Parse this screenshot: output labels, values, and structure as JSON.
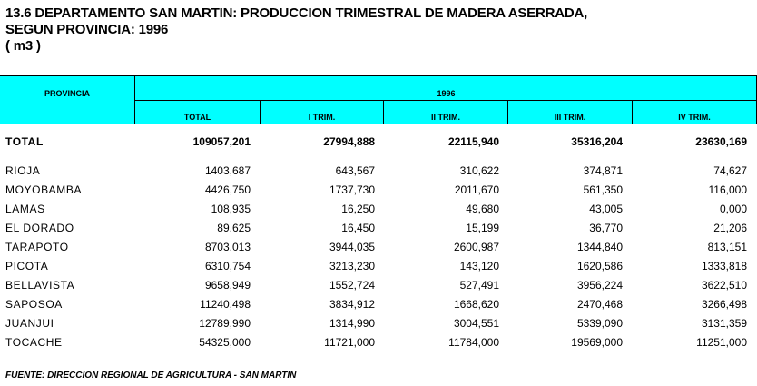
{
  "title": {
    "line1": "13.6 DEPARTAMENTO SAN MARTIN: PRODUCCION TRIMESTRAL DE MADERA ASERRADA,",
    "line2": "SEGUN PROVINCIA: 1996",
    "line3": "( m3 )"
  },
  "header": {
    "provincia": "PROVINCIA",
    "year": "1996",
    "columns": [
      "TOTAL",
      "I TRIM.",
      "II TRIM.",
      "III TRIM.",
      "IV TRIM."
    ]
  },
  "total_row": {
    "name": "TOTAL",
    "values": [
      "109057,201",
      "27994,888",
      "22115,940",
      "35316,204",
      "23630,169"
    ]
  },
  "rows": [
    {
      "name": "RIOJA",
      "values": [
        "1403,687",
        "643,567",
        "310,622",
        "374,871",
        "74,627"
      ]
    },
    {
      "name": "MOYOBAMBA",
      "values": [
        "4426,750",
        "1737,730",
        "2011,670",
        "561,350",
        "116,000"
      ]
    },
    {
      "name": "LAMAS",
      "values": [
        "108,935",
        "16,250",
        "49,680",
        "43,005",
        "0,000"
      ]
    },
    {
      "name": "EL DORADO",
      "values": [
        "89,625",
        "16,450",
        "15,199",
        "36,770",
        "21,206"
      ]
    },
    {
      "name": "TARAPOTO",
      "values": [
        "8703,013",
        "3944,035",
        "2600,987",
        "1344,840",
        "813,151"
      ]
    },
    {
      "name": "PICOTA",
      "values": [
        "6310,754",
        "3213,230",
        "143,120",
        "1620,586",
        "1333,818"
      ]
    },
    {
      "name": "BELLAVISTA",
      "values": [
        "9658,949",
        "1552,724",
        "527,491",
        "3956,224",
        "3622,510"
      ]
    },
    {
      "name": "SAPOSOA",
      "values": [
        "11240,498",
        "3834,912",
        "1668,620",
        "2470,468",
        "3266,498"
      ]
    },
    {
      "name": "JUANJUI",
      "values": [
        "12789,990",
        "1314,990",
        "3004,551",
        "5339,090",
        "3131,359"
      ]
    },
    {
      "name": "TOCACHE",
      "values": [
        "54325,000",
        "11721,000",
        "11784,000",
        "19569,000",
        "11251,000"
      ]
    }
  ],
  "footer": "FUENTE: DIRECCION REGIONAL DE AGRICULTURA - SAN MARTIN",
  "colors": {
    "header_bg": "#00ffff"
  }
}
